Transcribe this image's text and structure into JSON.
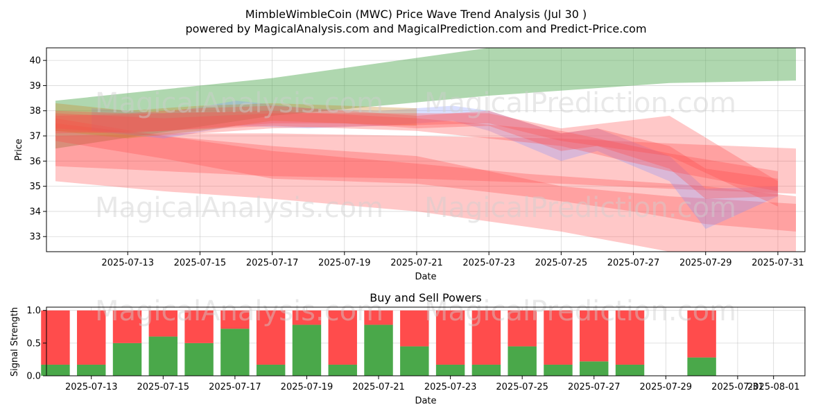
{
  "title_line1": "MimbleWimbleCoin (MWC) Price Wave Trend Analysis (Jul 30 )",
  "title_line2": "powered by MagicalAnalysis.com and MagicalPrediction.com and Predict-Price.com",
  "watermark_left": "MagicalAnalysis.com",
  "watermark_right": "MagicalPrediction.com",
  "colors": {
    "green_band": "#4da74d",
    "red_band": "#ff4a4a",
    "blue_band": "#7a8cff",
    "orange_band": "#c98a2a",
    "buy": "#4aa84a",
    "sell": "#ff4c4c"
  },
  "chart_data": [
    {
      "type": "area",
      "xlabel": "Date",
      "ylabel": "Price",
      "xlim": [
        "2025-07-10T18:00",
        "2025-07-31T18:00"
      ],
      "ylim": [
        32.4,
        40.5
      ],
      "yticks": [
        33,
        34,
        35,
        36,
        37,
        38,
        39,
        40
      ],
      "xticks": [
        "2025-07-13",
        "2025-07-15",
        "2025-07-17",
        "2025-07-19",
        "2025-07-21",
        "2025-07-23",
        "2025-07-25",
        "2025-07-27",
        "2025-07-29",
        "2025-07-31"
      ],
      "grid": true,
      "bands": [
        {
          "color": "green",
          "x": [
            "2025-07-11",
            "2025-07-17",
            "2025-07-23",
            "2025-07-28",
            "2025-07-31T12:00"
          ],
          "upper": [
            38.4,
            39.3,
            40.5,
            40.5,
            40.5
          ],
          "lower": [
            36.5,
            37.8,
            38.6,
            39.1,
            39.2
          ]
        },
        {
          "color": "red",
          "x": [
            "2025-07-11",
            "2025-07-14",
            "2025-07-17",
            "2025-07-21",
            "2025-07-25",
            "2025-07-28",
            "2025-07-31T12:00"
          ],
          "upper": [
            37.7,
            37.0,
            36.6,
            36.2,
            35.0,
            34.6,
            34.3
          ],
          "lower": [
            35.2,
            34.8,
            34.5,
            34.0,
            33.2,
            32.4,
            32.4
          ]
        },
        {
          "color": "red",
          "x": [
            "2025-07-11",
            "2025-07-14",
            "2025-07-17",
            "2025-07-21",
            "2025-07-25",
            "2025-07-28",
            "2025-07-31T12:00"
          ],
          "upper": [
            37.0,
            37.1,
            37.1,
            37.0,
            36.9,
            36.7,
            36.5
          ],
          "lower": [
            35.8,
            35.6,
            35.4,
            35.3,
            35.1,
            34.9,
            34.7
          ]
        },
        {
          "color": "red",
          "x": [
            "2025-07-11",
            "2025-07-14",
            "2025-07-17",
            "2025-07-21",
            "2025-07-24",
            "2025-07-27",
            "2025-07-29",
            "2025-07-31T12:00"
          ],
          "upper": [
            37.5,
            37.0,
            36.4,
            35.9,
            35.5,
            35.2,
            35.0,
            34.6
          ],
          "lower": [
            36.8,
            36.1,
            35.3,
            35.1,
            34.6,
            34.0,
            33.5,
            33.2
          ]
        },
        {
          "color": "blue",
          "x": [
            "2025-07-12",
            "2025-07-14",
            "2025-07-16",
            "2025-07-18",
            "2025-07-20",
            "2025-07-22",
            "2025-07-23",
            "2025-07-25",
            "2025-07-26",
            "2025-07-28",
            "2025-07-29",
            "2025-07-31"
          ],
          "upper": [
            38.1,
            37.9,
            38.4,
            38.1,
            38.0,
            38.2,
            38.0,
            37.1,
            37.3,
            36.2,
            34.9,
            35.0
          ],
          "lower": [
            37.2,
            36.9,
            37.4,
            37.3,
            37.4,
            37.6,
            37.2,
            36.0,
            36.4,
            35.2,
            33.3,
            34.6
          ]
        },
        {
          "color": "orange",
          "x": [
            "2025-07-11",
            "2025-07-13",
            "2025-07-15",
            "2025-07-17",
            "2025-07-19",
            "2025-07-21"
          ],
          "upper": [
            38.3,
            38.0,
            38.2,
            38.3,
            38.2,
            38.1
          ],
          "lower": [
            37.2,
            36.9,
            37.2,
            37.6,
            37.5,
            37.4
          ]
        },
        {
          "color": "red",
          "x": [
            "2025-07-11",
            "2025-07-13",
            "2025-07-15",
            "2025-07-17",
            "2025-07-19",
            "2025-07-21",
            "2025-07-23",
            "2025-07-25",
            "2025-07-26",
            "2025-07-28",
            "2025-07-29",
            "2025-07-31"
          ],
          "upper": [
            38.0,
            37.9,
            38.1,
            38.2,
            38.0,
            37.8,
            38.0,
            37.1,
            37.3,
            36.6,
            35.7,
            35.3
          ],
          "lower": [
            37.3,
            37.1,
            37.3,
            37.5,
            37.5,
            37.3,
            37.4,
            36.4,
            36.6,
            35.7,
            34.5,
            34.6
          ]
        },
        {
          "color": "red",
          "x": [
            "2025-07-11",
            "2025-07-14",
            "2025-07-17",
            "2025-07-20",
            "2025-07-23",
            "2025-07-25",
            "2025-07-28",
            "2025-07-31"
          ],
          "upper": [
            37.9,
            37.7,
            37.9,
            37.9,
            37.9,
            37.3,
            37.8,
            35.2
          ],
          "lower": [
            37.2,
            37.0,
            37.3,
            37.4,
            37.5,
            36.8,
            36.2,
            34.2
          ]
        },
        {
          "color": "red",
          "x": [
            "2025-07-11",
            "2025-07-14",
            "2025-07-17",
            "2025-07-21",
            "2025-07-25",
            "2025-07-28",
            "2025-07-31"
          ],
          "upper": [
            37.8,
            37.9,
            38.0,
            37.7,
            37.2,
            36.3,
            35.6
          ],
          "lower": [
            37.1,
            37.2,
            37.4,
            37.2,
            36.6,
            35.6,
            34.8
          ]
        }
      ]
    },
    {
      "type": "bar",
      "title": "Buy and Sell Powers",
      "xlabel": "Date",
      "ylabel": "Signal Strength",
      "ylim": [
        0,
        1.05
      ],
      "yticks": [
        "0.0",
        "0.5",
        "1.0"
      ],
      "xticks": [
        "2025-07-13",
        "2025-07-15",
        "2025-07-17",
        "2025-07-19",
        "2025-07-21",
        "2025-07-23",
        "2025-07-25",
        "2025-07-27",
        "2025-07-29",
        "2025-07-31",
        "2025-08-01"
      ],
      "grid": true,
      "categories": [
        "2025-07-12",
        "2025-07-13",
        "2025-07-14",
        "2025-07-15",
        "2025-07-16",
        "2025-07-17",
        "2025-07-18",
        "2025-07-19",
        "2025-07-20",
        "2025-07-21",
        "2025-07-22",
        "2025-07-23",
        "2025-07-24",
        "2025-07-25",
        "2025-07-26",
        "2025-07-27",
        "2025-07-28",
        "2025-07-30"
      ],
      "series": [
        {
          "name": "Buy",
          "values": [
            0.17,
            0.17,
            0.5,
            0.6,
            0.5,
            0.72,
            0.17,
            0.78,
            0.17,
            0.78,
            0.45,
            0.17,
            0.17,
            0.45,
            0.17,
            0.22,
            0.17,
            0.28
          ]
        },
        {
          "name": "Sell",
          "values": [
            0.83,
            0.83,
            0.5,
            0.4,
            0.5,
            0.28,
            0.83,
            0.22,
            0.83,
            0.22,
            0.55,
            0.83,
            0.83,
            0.55,
            0.83,
            0.78,
            0.83,
            0.72
          ]
        }
      ]
    }
  ]
}
